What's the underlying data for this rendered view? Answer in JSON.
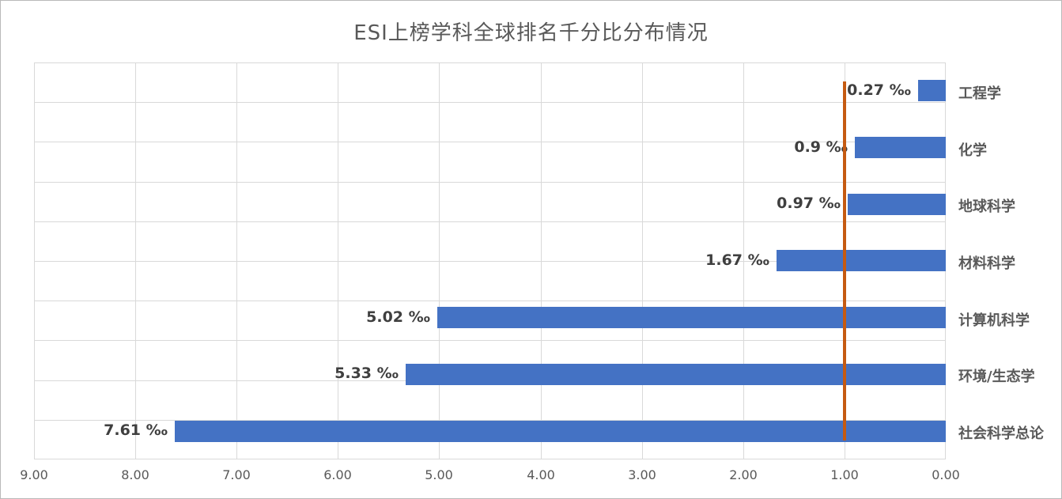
{
  "chart_data": {
    "type": "bar",
    "orientation": "horizontal",
    "title": "ESI上榜学科全球排名千分比分布情况",
    "categories": [
      "工程学",
      "化学",
      "地球科学",
      "材料科学",
      "计算机科学",
      "环境/生态学",
      "社会科学总论"
    ],
    "values": [
      0.27,
      0.9,
      0.97,
      1.67,
      5.02,
      5.33,
      7.61
    ],
    "value_labels": [
      "0.27 ‰",
      "0.9 ‰",
      "0.97 ‰",
      "1.67 ‰",
      "5.02 ‰",
      "5.33 ‰",
      "7.61 ‰"
    ],
    "unit": "‰",
    "x_ticks": [
      "9.00",
      "8.00",
      "7.00",
      "6.00",
      "5.00",
      "4.00",
      "3.00",
      "2.00",
      "1.00",
      "0.00"
    ],
    "xlim": [
      0,
      9
    ],
    "x_axis_reversed": true,
    "h_grid_bands": 10,
    "reference_line": {
      "value": 1.0,
      "color": "#c55a11"
    },
    "bar_color": "#4472c4",
    "gridline_color": "#d9d9d9",
    "title_color": "#595959",
    "label_color": "#3f3f3f",
    "axis_text_color": "#595959",
    "legend": "none"
  }
}
